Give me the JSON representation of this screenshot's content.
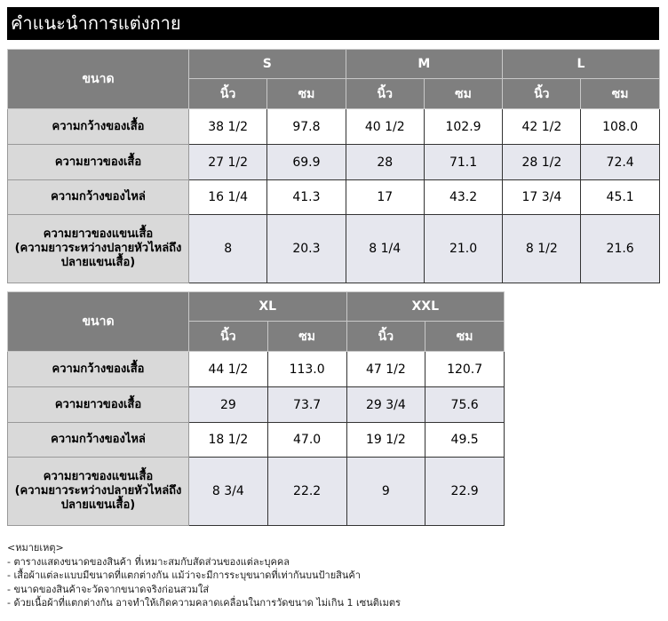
{
  "title": "คำแนะนำการแต่งกาย",
  "size_label": "ขนาด",
  "unit_labels": [
    "นิ้ว",
    "ซม"
  ],
  "row_labels": [
    "ความกว้างของเสื้อ",
    "ความยาวของเสื้อ",
    "ความกว้างของไหล่",
    "ความยาวของแขนเสื้อ\n(ความยาวระหว่างปลายหัวไหล่ถึง\nปลายแขนเสื้อ)"
  ],
  "tables": [
    {
      "sizes": [
        {
          "name": "S",
          "values": [
            [
              "38 1/2",
              "97.8"
            ],
            [
              "27 1/2",
              "69.9"
            ],
            [
              "16 1/4",
              "41.3"
            ],
            [
              "8",
              "20.3"
            ]
          ]
        },
        {
          "name": "M",
          "values": [
            [
              "40 1/2",
              "102.9"
            ],
            [
              "28",
              "71.1"
            ],
            [
              "17",
              "43.2"
            ],
            [
              "8 1/4",
              "21.0"
            ]
          ]
        },
        {
          "name": "L",
          "values": [
            [
              "42 1/2",
              "108.0"
            ],
            [
              "28 1/2",
              "72.4"
            ],
            [
              "17 3/4",
              "45.1"
            ],
            [
              "8 1/2",
              "21.6"
            ]
          ]
        }
      ]
    },
    {
      "sizes": [
        {
          "name": "XL",
          "values": [
            [
              "44 1/2",
              "113.0"
            ],
            [
              "29",
              "73.7"
            ],
            [
              "18 1/2",
              "47.0"
            ],
            [
              "8 3/4",
              "22.2"
            ]
          ]
        },
        {
          "name": "XXL",
          "values": [
            [
              "47 1/2",
              "120.7"
            ],
            [
              "29 3/4",
              "75.6"
            ],
            [
              "19 1/2",
              "49.5"
            ],
            [
              "9",
              "22.9"
            ]
          ]
        }
      ]
    }
  ],
  "notes": {
    "heading": "<หมายเหตุ>",
    "items": [
      "- ตารางแสดงขนาดของสินค้า ที่เหมาะสมกับสัดส่วนของแต่ละบุคคล",
      "- เสื้อผ้าแต่ละแบบมีขนาดที่แตกต่างกัน แม้ว่าจะมีการระบุขนาดที่เท่ากันบนป้ายสินค้า",
      "- ขนาดของสินค้าจะวัดจากขนาดจริงก่อนสวมใส่",
      "- ด้วยเนื้อผ้าที่แตกต่างกัน อาจทำให้เกิดความคลาดเคลื่อนในการวัดขนาด ไม่เกิน 1 เซนติเมตร"
    ]
  }
}
